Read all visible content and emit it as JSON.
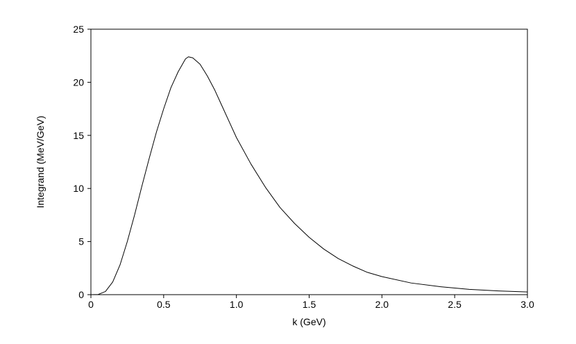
{
  "chart_data": {
    "type": "line",
    "x_label": "k (GeV)",
    "y_label": "Integrand (MeV/GeV)",
    "x": [
      0,
      0.05,
      0.1,
      0.15,
      0.2,
      0.25,
      0.3,
      0.35,
      0.4,
      0.45,
      0.5,
      0.55,
      0.6,
      0.65,
      0.67,
      0.7,
      0.75,
      0.8,
      0.85,
      0.9,
      0.95,
      1.0,
      1.1,
      1.2,
      1.3,
      1.4,
      1.5,
      1.6,
      1.7,
      1.8,
      1.9,
      2.0,
      2.2,
      2.4,
      2.6,
      2.8,
      3.0
    ],
    "series": [
      {
        "color": "#000000",
        "values": [
          0,
          0.02,
          0.3,
          1.2,
          2.8,
          5,
          7.5,
          10.2,
          12.8,
          15.3,
          17.5,
          19.5,
          21.0,
          22.2,
          22.4,
          22.3,
          21.7,
          20.6,
          19.3,
          17.8,
          16.3,
          14.8,
          12.3,
          10.1,
          8.2,
          6.7,
          5.4,
          4.3,
          3.4,
          2.7,
          2.1,
          1.7,
          1.1,
          0.75,
          0.5,
          0.35,
          0.25
        ]
      }
    ],
    "xlim": [
      0,
      3.0
    ],
    "xticks": [
      0,
      0.5,
      {
        "value": 1,
        "label": "1.0"
      },
      1.5,
      {
        "value": 2,
        "label": "2.0"
      },
      2.5,
      {
        "value": 3,
        "label": "3.0"
      }
    ],
    "ylim": [
      0,
      25
    ],
    "yticks": [
      0,
      5,
      10,
      15,
      20,
      25
    ],
    "grid": false
  }
}
